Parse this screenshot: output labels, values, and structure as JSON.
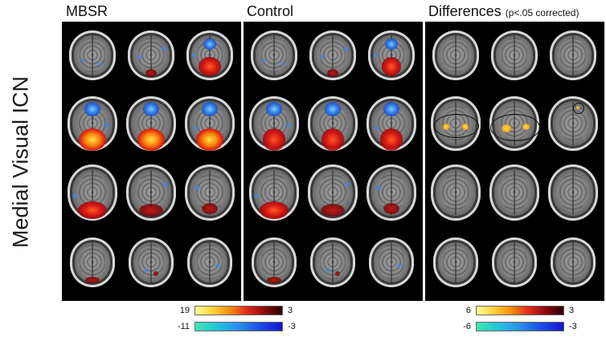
{
  "figure": {
    "row_label": "Medial Visual ICN",
    "groups": [
      {
        "title": "MBSR",
        "note": ""
      },
      {
        "title": "Control",
        "note": ""
      },
      {
        "title": "Differences",
        "note": "(p<.05 corrected)"
      }
    ],
    "colorbars": [
      {
        "positive": {
          "max": "19",
          "min": "3"
        },
        "negative": {
          "max": "-11",
          "min": "-3"
        }
      },
      {
        "positive": {
          "max": "6",
          "min": "3"
        },
        "negative": {
          "max": "-6",
          "min": "-3"
        }
      }
    ],
    "colors": {
      "positive_scale": [
        "#ffff9a",
        "#ffd23a",
        "#ff8a10",
        "#e0281c",
        "#8a0c0c",
        "#2a0000"
      ],
      "negative_scale": [
        "#40e6b0",
        "#22c4d8",
        "#2a8ef0",
        "#1b4be8",
        "#1414d0"
      ]
    },
    "layout_note_grid": "4 rows x 3 axial brain slices per panel"
  }
}
